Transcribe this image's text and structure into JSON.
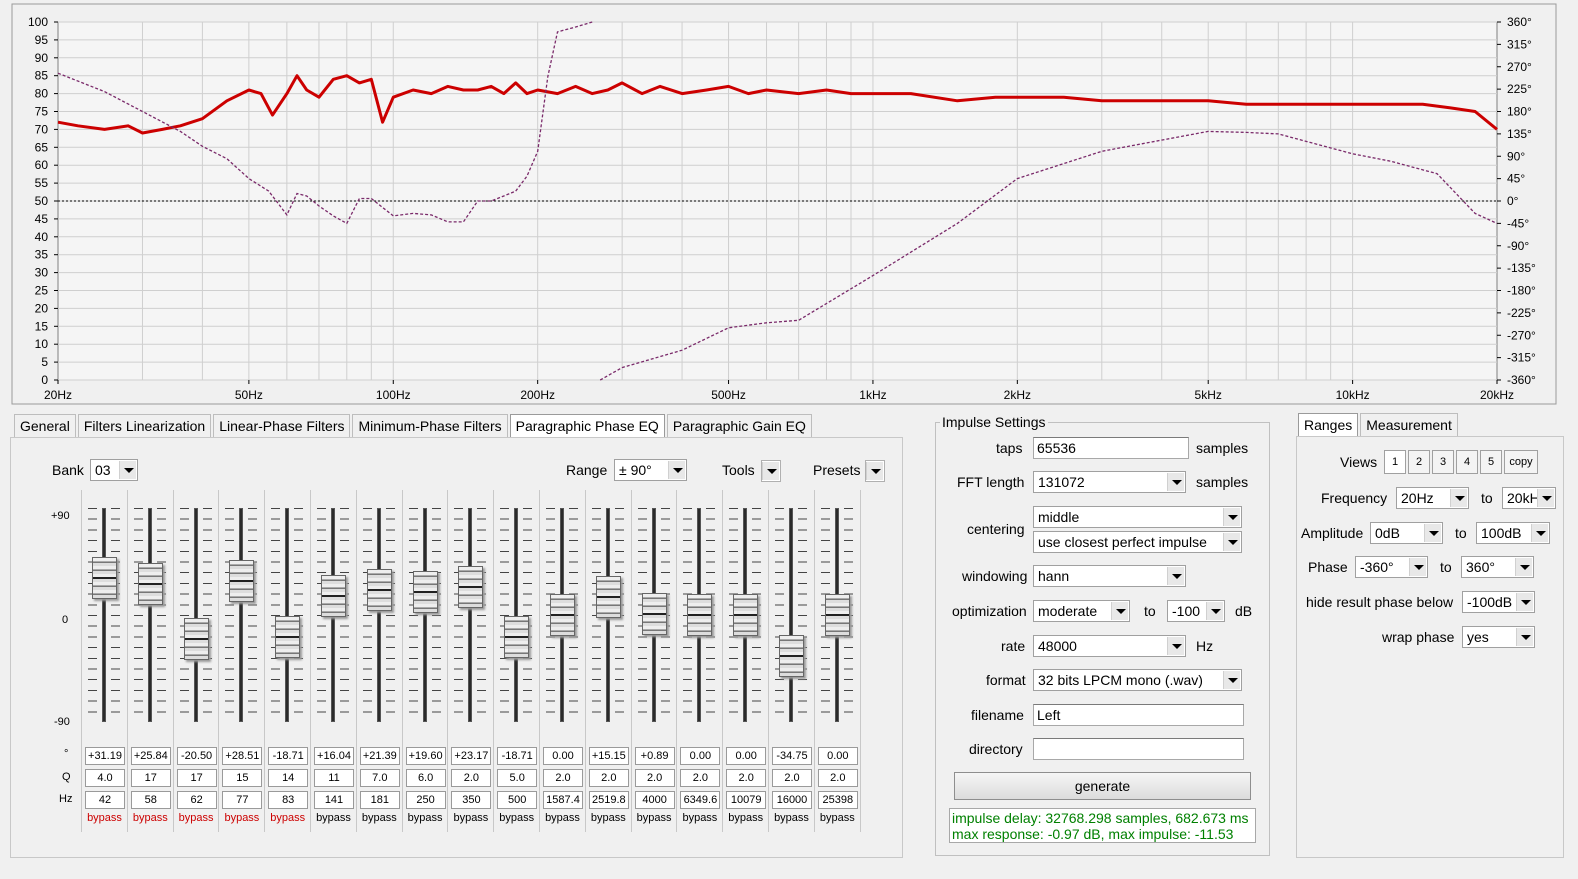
{
  "chart_data": {
    "type": "line",
    "x_ticks": [
      "20Hz",
      "50Hz",
      "100Hz",
      "200Hz",
      "500Hz",
      "1kHz",
      "2kHz",
      "5kHz",
      "10kHz",
      "20kHz"
    ],
    "y_left_ticks": [
      "100",
      "95",
      "90",
      "85",
      "80",
      "75",
      "70",
      "65",
      "60",
      "55",
      "50",
      "45",
      "40",
      "35",
      "30",
      "25",
      "20",
      "15",
      "10",
      "5",
      "0"
    ],
    "y_right_ticks": [
      "360°",
      "315°",
      "270°",
      "225°",
      "180°",
      "135°",
      "90°",
      "45°",
      "0°",
      "-45°",
      "-90°",
      "-135°",
      "-180°",
      "-225°",
      "-270°",
      "-315°",
      "-360°"
    ],
    "xlim_hz": [
      20,
      20000
    ],
    "ylim_db": [
      0,
      100
    ],
    "ylim_phase_deg": [
      -360,
      360
    ],
    "x_scale": "log",
    "grid": true,
    "series": [
      {
        "color": "#cc0000",
        "style": "solid",
        "x": [
          20,
          22,
          25,
          28,
          30,
          33,
          36,
          40,
          45,
          50,
          53,
          56,
          60,
          63,
          66,
          70,
          75,
          80,
          85,
          90,
          95,
          100,
          110,
          120,
          130,
          140,
          150,
          160,
          170,
          180,
          190,
          200,
          220,
          240,
          260,
          280,
          300,
          330,
          360,
          400,
          450,
          500,
          550,
          600,
          700,
          800,
          900,
          1000,
          1200,
          1500,
          1800,
          2000,
          2500,
          3000,
          4000,
          5000,
          6000,
          7000,
          8000,
          10000,
          12000,
          14000,
          16000,
          18000,
          20000
        ],
        "y": [
          72,
          71,
          70,
          71,
          69,
          70,
          71,
          73,
          78,
          81,
          80,
          74,
          80,
          85,
          81,
          79,
          84,
          85,
          83,
          84,
          72,
          79,
          81,
          80,
          82,
          81,
          81,
          82,
          80,
          83,
          80,
          81,
          80,
          82,
          80,
          81,
          83,
          80,
          82,
          80,
          81,
          82,
          80,
          81,
          80,
          81,
          80,
          80,
          80,
          78,
          79,
          79,
          79,
          78,
          78,
          78,
          77,
          77,
          77,
          77,
          77,
          77,
          76,
          75,
          70
        ]
      },
      {
        "color": "#7a2a6a",
        "style": "dashed",
        "x": [
          20,
          25,
          30,
          36,
          40,
          45,
          50,
          55,
          60,
          63,
          66,
          70,
          75,
          80,
          85,
          90,
          100,
          110,
          120,
          130,
          140,
          150,
          160,
          170,
          180,
          190,
          200,
          210,
          220,
          240,
          260,
          270,
          300,
          400,
          500,
          600,
          700,
          1000,
          1500,
          2000,
          3000,
          5000,
          6000,
          7000,
          10000,
          12000,
          15000,
          18000,
          20000
        ],
        "y_deg": [
          257,
          220,
          180,
          140,
          110,
          85,
          45,
          20,
          -28,
          15,
          10,
          -10,
          -30,
          -45,
          5,
          5,
          -30,
          -25,
          -28,
          -42,
          -42,
          0,
          0,
          10,
          20,
          50,
          100,
          250,
          340,
          350,
          360,
          -360,
          -335,
          -300,
          -255,
          -245,
          -240,
          -150,
          -45,
          45,
          100,
          140,
          138,
          135,
          95,
          80,
          55,
          -25,
          -45
        ]
      }
    ]
  },
  "tabs_left": [
    "General",
    "Filters Linearization",
    "Linear-Phase Filters",
    "Minimum-Phase Filters",
    "Paragraphic Phase EQ",
    "Paragraphic Gain EQ"
  ],
  "eq": {
    "bank_label": "Bank",
    "bank_value": "03",
    "range_label": "Range",
    "range_value": "± 90°",
    "tools": "Tools",
    "presets": "Presets",
    "scale_top": "+90",
    "scale_mid": "0",
    "scale_bottom": "-90",
    "row_deg": "°",
    "row_q": "Q",
    "row_hz": "Hz",
    "bands": [
      {
        "deg": "+31.19",
        "q": "4.0",
        "hz": "42",
        "bypass": "bypass",
        "active": true,
        "level": 0.3466
      },
      {
        "deg": "+25.84",
        "q": "17",
        "hz": "58",
        "bypass": "bypass",
        "active": true,
        "level": 0.2871
      },
      {
        "deg": "-20.50",
        "q": "17",
        "hz": "62",
        "bypass": "bypass",
        "active": true,
        "level": -0.2278
      },
      {
        "deg": "+28.51",
        "q": "15",
        "hz": "77",
        "bypass": "bypass",
        "active": true,
        "level": 0.3168
      },
      {
        "deg": "-18.71",
        "q": "14",
        "hz": "83",
        "bypass": "bypass",
        "active": true,
        "level": -0.2079
      },
      {
        "deg": "+16.04",
        "q": "11",
        "hz": "141",
        "bypass": "bypass",
        "active": false,
        "level": 0.1782
      },
      {
        "deg": "+21.39",
        "q": "7.0",
        "hz": "181",
        "bypass": "bypass",
        "active": false,
        "level": 0.2377
      },
      {
        "deg": "+19.60",
        "q": "6.0",
        "hz": "250",
        "bypass": "bypass",
        "active": false,
        "level": 0.2178
      },
      {
        "deg": "+23.17",
        "q": "2.0",
        "hz": "350",
        "bypass": "bypass",
        "active": false,
        "level": 0.2574
      },
      {
        "deg": "-18.71",
        "q": "5.0",
        "hz": "500",
        "bypass": "bypass",
        "active": false,
        "level": -0.2079
      },
      {
        "deg": "0.00",
        "q": "2.0",
        "hz": "1587.4",
        "bypass": "bypass",
        "active": false,
        "level": 0
      },
      {
        "deg": "+15.15",
        "q": "2.0",
        "hz": "2519.8",
        "bypass": "bypass",
        "active": false,
        "level": 0.1683
      },
      {
        "deg": "+0.89",
        "q": "2.0",
        "hz": "4000",
        "bypass": "bypass",
        "active": false,
        "level": 0.0099
      },
      {
        "deg": "0.00",
        "q": "2.0",
        "hz": "6349.6",
        "bypass": "bypass",
        "active": false,
        "level": 0
      },
      {
        "deg": "0.00",
        "q": "2.0",
        "hz": "10079",
        "bypass": "bypass",
        "active": false,
        "level": 0
      },
      {
        "deg": "-34.75",
        "q": "2.0",
        "hz": "16000",
        "bypass": "bypass",
        "active": false,
        "level": -0.3861
      },
      {
        "deg": "0.00",
        "q": "2.0",
        "hz": "25398",
        "bypass": "bypass",
        "active": false,
        "level": 0
      }
    ],
    "bypass_active_color": "#cc0000"
  },
  "impulse": {
    "group_title": "Impulse Settings",
    "taps_label": "taps",
    "taps_value": "65536",
    "taps_unit": "samples",
    "fft_label": "FFT length",
    "fft_value": "131072",
    "fft_unit": "samples",
    "centering_label": "centering",
    "centering_value": "middle",
    "centering_value2": "use closest perfect impulse",
    "windowing_label": "windowing",
    "windowing_value": "hann",
    "optimization_label": "optimization",
    "optimization_value": "moderate",
    "opt_to": "to",
    "opt_db_value": "-100",
    "opt_db_unit": "dB",
    "rate_label": "rate",
    "rate_value": "48000",
    "rate_unit": "Hz",
    "format_label": "format",
    "format_value": "32 bits LPCM mono (.wav)",
    "filename_label": "filename",
    "filename_value": "Left",
    "directory_label": "directory",
    "directory_value": "",
    "generate_label": "generate",
    "status_line1": "impulse delay: 32768.298 samples, 682.673 ms",
    "status_line2": "max response: -0.97 dB, max impulse: -11.53 dB",
    "status_color": "#008000"
  },
  "ranges": {
    "tabs": [
      "Ranges",
      "Measurement"
    ],
    "views_label": "Views",
    "views": [
      "1",
      "2",
      "3",
      "4",
      "5"
    ],
    "copy_label": "copy",
    "frequency_label": "Frequency",
    "freq_from": "20Hz",
    "freq_to_label": "to",
    "freq_to": "20kHz",
    "amplitude_label": "Amplitude",
    "amp_from": "0dB",
    "amp_to_label": "to",
    "amp_to": "100dB",
    "phase_label": "Phase",
    "phase_from": "-360°",
    "phase_to_label": "to",
    "phase_to": "360°",
    "hide_label": "hide result phase below",
    "hide_value": "-100dB",
    "wrap_label": "wrap phase",
    "wrap_value": "yes"
  }
}
